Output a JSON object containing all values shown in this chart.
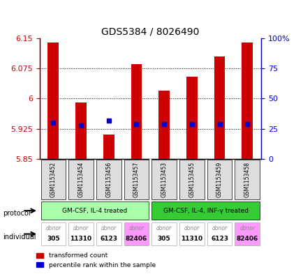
{
  "title": "GDS5384 / 8026490",
  "samples": [
    "GSM1153452",
    "GSM1153454",
    "GSM1153456",
    "GSM1153457",
    "GSM1153453",
    "GSM1153455",
    "GSM1153459",
    "GSM1153458"
  ],
  "transformed_counts": [
    6.14,
    5.99,
    5.91,
    6.085,
    6.02,
    6.055,
    6.105,
    6.14
  ],
  "percentile_ranks": [
    30,
    28,
    32,
    29,
    29,
    29,
    29,
    29
  ],
  "ymin": 5.85,
  "ymax": 6.15,
  "yticks": [
    5.85,
    5.925,
    6.0,
    6.075,
    6.15
  ],
  "ytick_labels": [
    "5.85",
    "5.925",
    "6",
    "6.075",
    "6.15"
  ],
  "right_yticks": [
    0,
    25,
    50,
    75,
    100
  ],
  "right_ytick_labels": [
    "0",
    "25",
    "50",
    "75",
    "100%"
  ],
  "bar_color": "#cc0000",
  "dot_color": "#0000cc",
  "protocol_groups": [
    {
      "label": "GM-CSF, IL-4 treated",
      "start": 0,
      "end": 4,
      "color": "#aaffaa"
    },
    {
      "label": "GM-CSF, IL-4, INF-γ treated",
      "start": 4,
      "end": 8,
      "color": "#33cc33"
    }
  ],
  "individuals": [
    "donor\n305",
    "donor\n11310",
    "donor\n6123",
    "donor\n82406",
    "donor\n305",
    "donor\n11310",
    "donor\n6123",
    "donor\n82406"
  ],
  "individual_colors": [
    "#ffffff",
    "#ffffff",
    "#ffffff",
    "#ff99ff",
    "#ffffff",
    "#ffffff",
    "#ffffff",
    "#ff99ff"
  ],
  "grid_color": "#000000",
  "bg_color": "#ffffff"
}
